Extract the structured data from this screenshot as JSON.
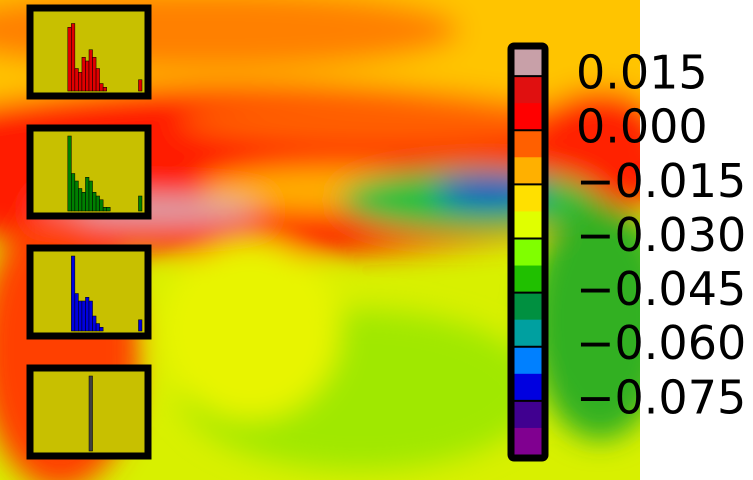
{
  "chart_data": [
    {
      "type": "heatmap",
      "colors": [
        "#c8a0a8",
        "#e01010",
        "#ff0000",
        "#ff6000",
        "#ffb000",
        "#ffe000",
        "#e0ff00",
        "#80ff00",
        "#20c000",
        "#009040",
        "#00a0a0",
        "#0080ff",
        "#0000e0",
        "#400090",
        "#800090"
      ],
      "ylim": [
        -0.09,
        0.0225
      ],
      "yticks": [
        0.015,
        {
          "value": 0,
          "label": "0.000"
        },
        {
          "value": -0.015,
          "label": "−0.015"
        },
        {
          "value": -0.03,
          "label": "−0.030"
        },
        {
          "value": -0.045,
          "label": "−0.045"
        },
        {
          "value": -0.06,
          "label": "−0.060"
        },
        {
          "value": -0.075,
          "label": "−0.075"
        }
      ]
    },
    {
      "type": "bar",
      "color": "#e00000",
      "ylim": [
        0,
        100
      ],
      "values": [
        0,
        0,
        0,
        0,
        0,
        0,
        0,
        0,
        0,
        85,
        90,
        30,
        25,
        45,
        40,
        55,
        45,
        30,
        10,
        5,
        0,
        0,
        0,
        0,
        0,
        0,
        0,
        0,
        0,
        15
      ]
    },
    {
      "type": "bar",
      "color": "#008000",
      "ylim": [
        0,
        100
      ],
      "values": [
        0,
        0,
        0,
        0,
        0,
        0,
        0,
        0,
        0,
        100,
        50,
        40,
        30,
        25,
        45,
        40,
        25,
        20,
        15,
        5,
        5,
        0,
        0,
        0,
        0,
        0,
        0,
        0,
        0,
        20
      ]
    },
    {
      "type": "bar",
      "color": "#0000e0",
      "ylim": [
        0,
        100
      ],
      "values": [
        0,
        0,
        0,
        0,
        0,
        0,
        0,
        0,
        0,
        0,
        100,
        50,
        40,
        40,
        45,
        40,
        20,
        10,
        5,
        0,
        0,
        0,
        0,
        0,
        0,
        0,
        0,
        0,
        0,
        15
      ]
    },
    {
      "type": "bar",
      "color": "#404040",
      "ylim": [
        0,
        100
      ],
      "values": [
        0,
        0,
        0,
        0,
        0,
        0,
        0,
        0,
        0,
        0,
        0,
        0,
        0,
        0,
        0,
        100,
        0,
        0,
        0,
        0,
        0,
        0,
        0,
        0,
        0,
        0,
        0,
        0,
        0,
        0
      ]
    }
  ]
}
